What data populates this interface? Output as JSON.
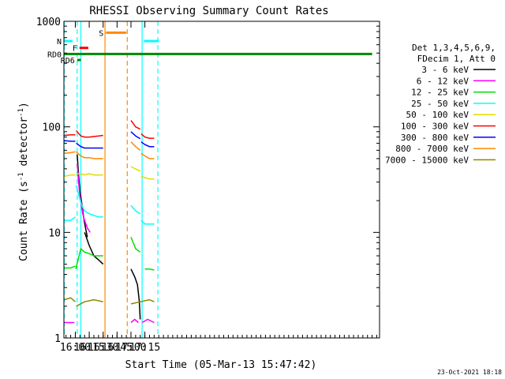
{
  "chart_data": {
    "type": "line",
    "title": "RHESSI Observing Summary Count Rates",
    "xlabel": "Start Time (05-Mar-13 15:47:42)",
    "ylabel_main": "Count Rate (s",
    "ylabel_sup1": "-1",
    "ylabel_mid": " detector",
    "ylabel_sup2": "-1",
    "ylabel_end": ")",
    "y_scale": "log",
    "ylim": [
      1,
      1000
    ],
    "xlim_minutes": [
      947.7,
      1288.0
    ],
    "x_ticks": [
      {
        "label": "16:00",
        "min": 960
      },
      {
        "label": "16:15",
        "min": 975
      },
      {
        "label": "16:30",
        "min": 990
      },
      {
        "label": "16:45",
        "min": 1005
      },
      {
        "label": "17:00",
        "min": 1020
      },
      {
        "label": "17:15",
        "min": 1035
      }
    ],
    "y_ticks": [
      {
        "label": "1",
        "value": 1
      },
      {
        "label": "10",
        "value": 10
      },
      {
        "label": "100",
        "value": 100
      },
      {
        "label": "1000",
        "value": 1000
      }
    ],
    "legend_placement": "right",
    "legend_header": [
      "Det 1,3,4,5,6,9,",
      "FDecim 1, Att 0"
    ],
    "footer_date": "23-Oct-2021 18:18",
    "series": [
      {
        "name": "3 - 6 keV",
        "color": "#000000",
        "segments": [
          {
            "x": [
              962.0,
              963.5,
              965.0,
              966.5,
              968.0,
              969.5,
              971.0,
              973.0
            ],
            "y": [
              55,
              35,
              25,
              20,
              16,
              13,
              11,
              9
            ]
          },
          {
            "x": [
              970.0,
              975.0,
              980.0,
              985.0,
              990.0
            ],
            "y": [
              10,
              7.5,
              6.0,
              5.5,
              5.0
            ]
          },
          {
            "x": [
              1020.0,
              1024.0,
              1027.0,
              1029.0,
              1030.0
            ],
            "y": [
              4.5,
              3.8,
              3.2,
              2.2,
              1.5
            ]
          }
        ]
      },
      {
        "name": "6 - 12 keV",
        "color": "#ff00ff",
        "segments": [
          {
            "x": [
              948.0,
              955.0,
              959.0
            ],
            "y": [
              1.4,
              1.4,
              1.4
            ]
          },
          {
            "x": [
              962.0,
              963.5,
              965.0,
              966.5,
              968.0,
              970.0,
              973.0,
              976.0
            ],
            "y": [
              45,
              30,
              22,
              18,
              15,
              13,
              11,
              10
            ]
          },
          {
            "x": [
              1020.0,
              1024.0,
              1028.0
            ],
            "y": [
              1.4,
              1.5,
              1.4
            ]
          },
          {
            "x": [
              1032.0,
              1038.0,
              1045.0
            ],
            "y": [
              1.4,
              1.5,
              1.4
            ]
          }
        ]
      },
      {
        "name": "12 - 25 keV",
        "color": "#00dd00",
        "segments": [
          {
            "x": [
              948.0,
              955.0,
              960.0
            ],
            "y": [
              4.6,
              4.6,
              4.8
            ]
          },
          {
            "x": [
              960.5,
              966.0,
              970.0,
              975.0,
              980.0,
              985.0,
              990.0
            ],
            "y": [
              4.5,
              7,
              6.5,
              6.3,
              6.0,
              6.0,
              6.0
            ]
          },
          {
            "x": [
              1020.0,
              1025.0,
              1030.0
            ],
            "y": [
              9,
              7,
              6.5
            ]
          },
          {
            "x": [
              1035.0,
              1040.0,
              1045.0
            ],
            "y": [
              4.5,
              4.5,
              4.4
            ]
          }
        ]
      },
      {
        "name": "25 - 50 keV",
        "color": "#00ffff",
        "segments": [
          {
            "x": [
              948.0,
              955.0,
              960.0
            ],
            "y": [
              13,
              13,
              14
            ]
          },
          {
            "x": [
              961.0,
              964.0,
              967.0,
              970.0,
              975.0,
              980.0,
              985.0,
              990.0
            ],
            "y": [
              28,
              22,
              18,
              16,
              15,
              14.5,
              14.0,
              14.0
            ]
          },
          {
            "x": [
              1020.0,
              1025.0,
              1030.0
            ],
            "y": [
              18,
              16,
              15
            ]
          },
          {
            "x": [
              1031.0,
              1035.0,
              1040.0,
              1045.0
            ],
            "y": [
              13,
              12,
              12,
              12
            ]
          }
        ]
      },
      {
        "name": "50 - 100 keV",
        "color": "#dddd00",
        "segments": [
          {
            "x": [
              948.0,
              955.0,
              960.0
            ],
            "y": [
              34,
              35,
              35
            ]
          },
          {
            "x": [
              961.0,
              966.0,
              970.0,
              975.0,
              980.0,
              985.0,
              990.0
            ],
            "y": [
              36,
              36,
              35,
              36,
              35,
              35,
              35
            ]
          },
          {
            "x": [
              1020.0,
              1025.0,
              1030.0
            ],
            "y": [
              42,
              40,
              38
            ]
          },
          {
            "x": [
              1031.0,
              1035.0,
              1040.0,
              1045.0
            ],
            "y": [
              34,
              33,
              32,
              32
            ]
          }
        ]
      },
      {
        "name": "100 - 300 keV",
        "color": "#ff0000",
        "segments": [
          {
            "x": [
              948.0,
              955.0,
              960.0
            ],
            "y": [
              83,
              84,
              84
            ]
          },
          {
            "x": [
              961.0,
              966.0,
              970.0,
              975.0,
              980.0,
              985.0,
              990.0
            ],
            "y": [
              92,
              82,
              80,
              80,
              81,
              82,
              83
            ]
          },
          {
            "x": [
              1020.0,
              1025.0,
              1030.0
            ],
            "y": [
              115,
              100,
              95
            ]
          },
          {
            "x": [
              1031.0,
              1035.0,
              1040.0,
              1045.0
            ],
            "y": [
              86,
              80,
              78,
              78
            ]
          }
        ]
      },
      {
        "name": "300 - 800 keV",
        "color": "#0000ff",
        "segments": [
          {
            "x": [
              948.0,
              955.0,
              960.0
            ],
            "y": [
              74,
              73,
              73
            ]
          },
          {
            "x": [
              961.0,
              966.0,
              970.0,
              975.0,
              980.0,
              985.0,
              990.0
            ],
            "y": [
              70,
              65,
              63,
              63,
              63,
              63,
              63
            ]
          },
          {
            "x": [
              1020.0,
              1025.0,
              1030.0
            ],
            "y": [
              90,
              82,
              77
            ]
          },
          {
            "x": [
              1031.0,
              1035.0,
              1040.0,
              1045.0
            ],
            "y": [
              72,
              68,
              65,
              65
            ]
          }
        ]
      },
      {
        "name": "800 - 7000 keV",
        "color": "#ff8800",
        "segments": [
          {
            "x": [
              948.0,
              955.0,
              960.0
            ],
            "y": [
              56,
              57,
              58
            ]
          },
          {
            "x": [
              961.0,
              966.0,
              970.0,
              975.0,
              980.0,
              985.0,
              990.0
            ],
            "y": [
              58,
              53,
              51,
              51,
              50,
              50,
              50
            ]
          },
          {
            "x": [
              1020.0,
              1025.0,
              1030.0
            ],
            "y": [
              72,
              65,
              60
            ]
          },
          {
            "x": [
              1031.0,
              1035.0,
              1040.0,
              1045.0
            ],
            "y": [
              56,
              53,
              50,
              50
            ]
          }
        ]
      },
      {
        "name": "7000 - 15000 keV",
        "color": "#888800",
        "segments": [
          {
            "x": [
              948.0,
              955.0,
              960.0
            ],
            "y": [
              2.3,
              2.4,
              2.2
            ]
          },
          {
            "x": [
              961.0,
              970.0,
              980.0,
              990.0
            ],
            "y": [
              2.0,
              2.2,
              2.3,
              2.2
            ]
          },
          {
            "x": [
              1020.0,
              1030.0,
              1040.0,
              1045.0
            ],
            "y": [
              2.1,
              2.2,
              2.3,
              2.2
            ]
          }
        ]
      }
    ],
    "flag_bars": [
      {
        "label": "N",
        "color": "#00ffff",
        "x_start": 947.7,
        "x_end": 957.0,
        "y_value": 650
      },
      {
        "label": "F",
        "color": "#ff0000",
        "x_start": 964.5,
        "x_end": 974.0,
        "y_value": 560
      },
      {
        "label": "RD0",
        "color": "#008800",
        "x_start": 947.7,
        "x_end": 1280.0,
        "y_value": 490
      },
      {
        "label": "RD6",
        "color": "#008800",
        "x_start": 962.0,
        "x_end": 966.0,
        "y_value": 430
      },
      {
        "label": "S",
        "color": "#ff8800",
        "x_start": 993.0,
        "x_end": 1015.0,
        "y_value": 780
      },
      {
        "label": "",
        "color": "#00ffff",
        "x_start": 1034.0,
        "x_end": 1050.0,
        "y_value": 650
      }
    ],
    "vertical_markers": [
      {
        "min": 948.0,
        "color": "#00ffff",
        "style": "dashed"
      },
      {
        "min": 962.0,
        "color": "#00ffff",
        "style": "dashed"
      },
      {
        "min": 966.0,
        "color": "#00ffff",
        "style": "solid"
      },
      {
        "min": 992.0,
        "color": "#ff8800",
        "style": "solid"
      },
      {
        "min": 1016.0,
        "color": "#ff8800",
        "style": "dashed"
      },
      {
        "min": 1032.0,
        "color": "#00ffff",
        "style": "solid"
      },
      {
        "min": 1049.0,
        "color": "#00ffff",
        "style": "dashed"
      }
    ]
  }
}
